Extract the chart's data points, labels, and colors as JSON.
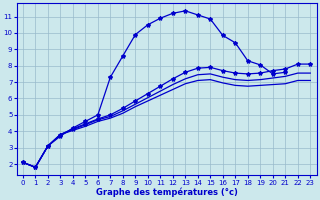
{
  "xlabel": "Graphe des températures (°c)",
  "bg_color": "#cce8ec",
  "line_color": "#0000cc",
  "grid_color": "#99bbcc",
  "xlim": [
    -0.5,
    23.5
  ],
  "ylim": [
    1.3,
    11.8
  ],
  "xticks": [
    0,
    1,
    2,
    3,
    4,
    5,
    6,
    7,
    8,
    9,
    10,
    11,
    12,
    13,
    14,
    15,
    16,
    17,
    18,
    19,
    20,
    21,
    22,
    23
  ],
  "yticks": [
    2,
    3,
    4,
    5,
    6,
    7,
    8,
    9,
    10,
    11
  ],
  "line1_x": [
    0,
    1,
    2,
    3,
    4,
    5,
    6,
    7,
    8,
    9,
    10,
    11,
    12,
    13,
    14,
    15,
    16,
    17,
    18,
    19,
    20,
    21
  ],
  "line1_y": [
    2.1,
    1.8,
    3.1,
    3.7,
    4.2,
    4.6,
    5.0,
    7.3,
    8.6,
    9.9,
    10.5,
    10.9,
    11.2,
    11.35,
    11.1,
    10.85,
    9.85,
    9.4,
    8.3,
    8.05,
    7.5,
    7.6
  ],
  "line2_x": [
    0,
    1,
    2,
    3,
    4,
    5,
    6,
    7,
    8,
    9,
    10,
    11,
    12,
    13,
    14,
    15,
    16,
    17,
    18,
    19,
    20,
    21,
    22,
    23
  ],
  "line2_y": [
    2.1,
    1.8,
    3.1,
    3.8,
    4.15,
    4.45,
    4.75,
    5.0,
    5.4,
    5.85,
    6.3,
    6.75,
    7.2,
    7.6,
    7.85,
    7.9,
    7.7,
    7.55,
    7.5,
    7.55,
    7.7,
    7.8,
    8.1,
    8.1
  ],
  "line3_x": [
    0,
    1,
    2,
    3,
    4,
    5,
    6,
    7,
    8,
    9,
    10,
    11,
    12,
    13,
    14,
    15,
    16,
    17,
    18,
    19,
    20,
    21,
    22,
    23
  ],
  "line3_y": [
    2.1,
    1.8,
    3.1,
    3.8,
    4.1,
    4.4,
    4.7,
    4.9,
    5.25,
    5.65,
    6.05,
    6.45,
    6.85,
    7.2,
    7.45,
    7.5,
    7.3,
    7.15,
    7.1,
    7.15,
    7.25,
    7.35,
    7.55,
    7.55
  ],
  "line4_x": [
    0,
    1,
    2,
    3,
    4,
    5,
    6,
    7,
    8,
    9,
    10,
    11,
    12,
    13,
    14,
    15,
    16,
    17,
    18,
    19,
    20,
    21,
    22,
    23
  ],
  "line4_y": [
    2.1,
    1.8,
    3.1,
    3.8,
    4.05,
    4.3,
    4.6,
    4.8,
    5.1,
    5.5,
    5.85,
    6.2,
    6.55,
    6.9,
    7.1,
    7.15,
    6.95,
    6.8,
    6.75,
    6.8,
    6.85,
    6.9,
    7.1,
    7.1
  ]
}
